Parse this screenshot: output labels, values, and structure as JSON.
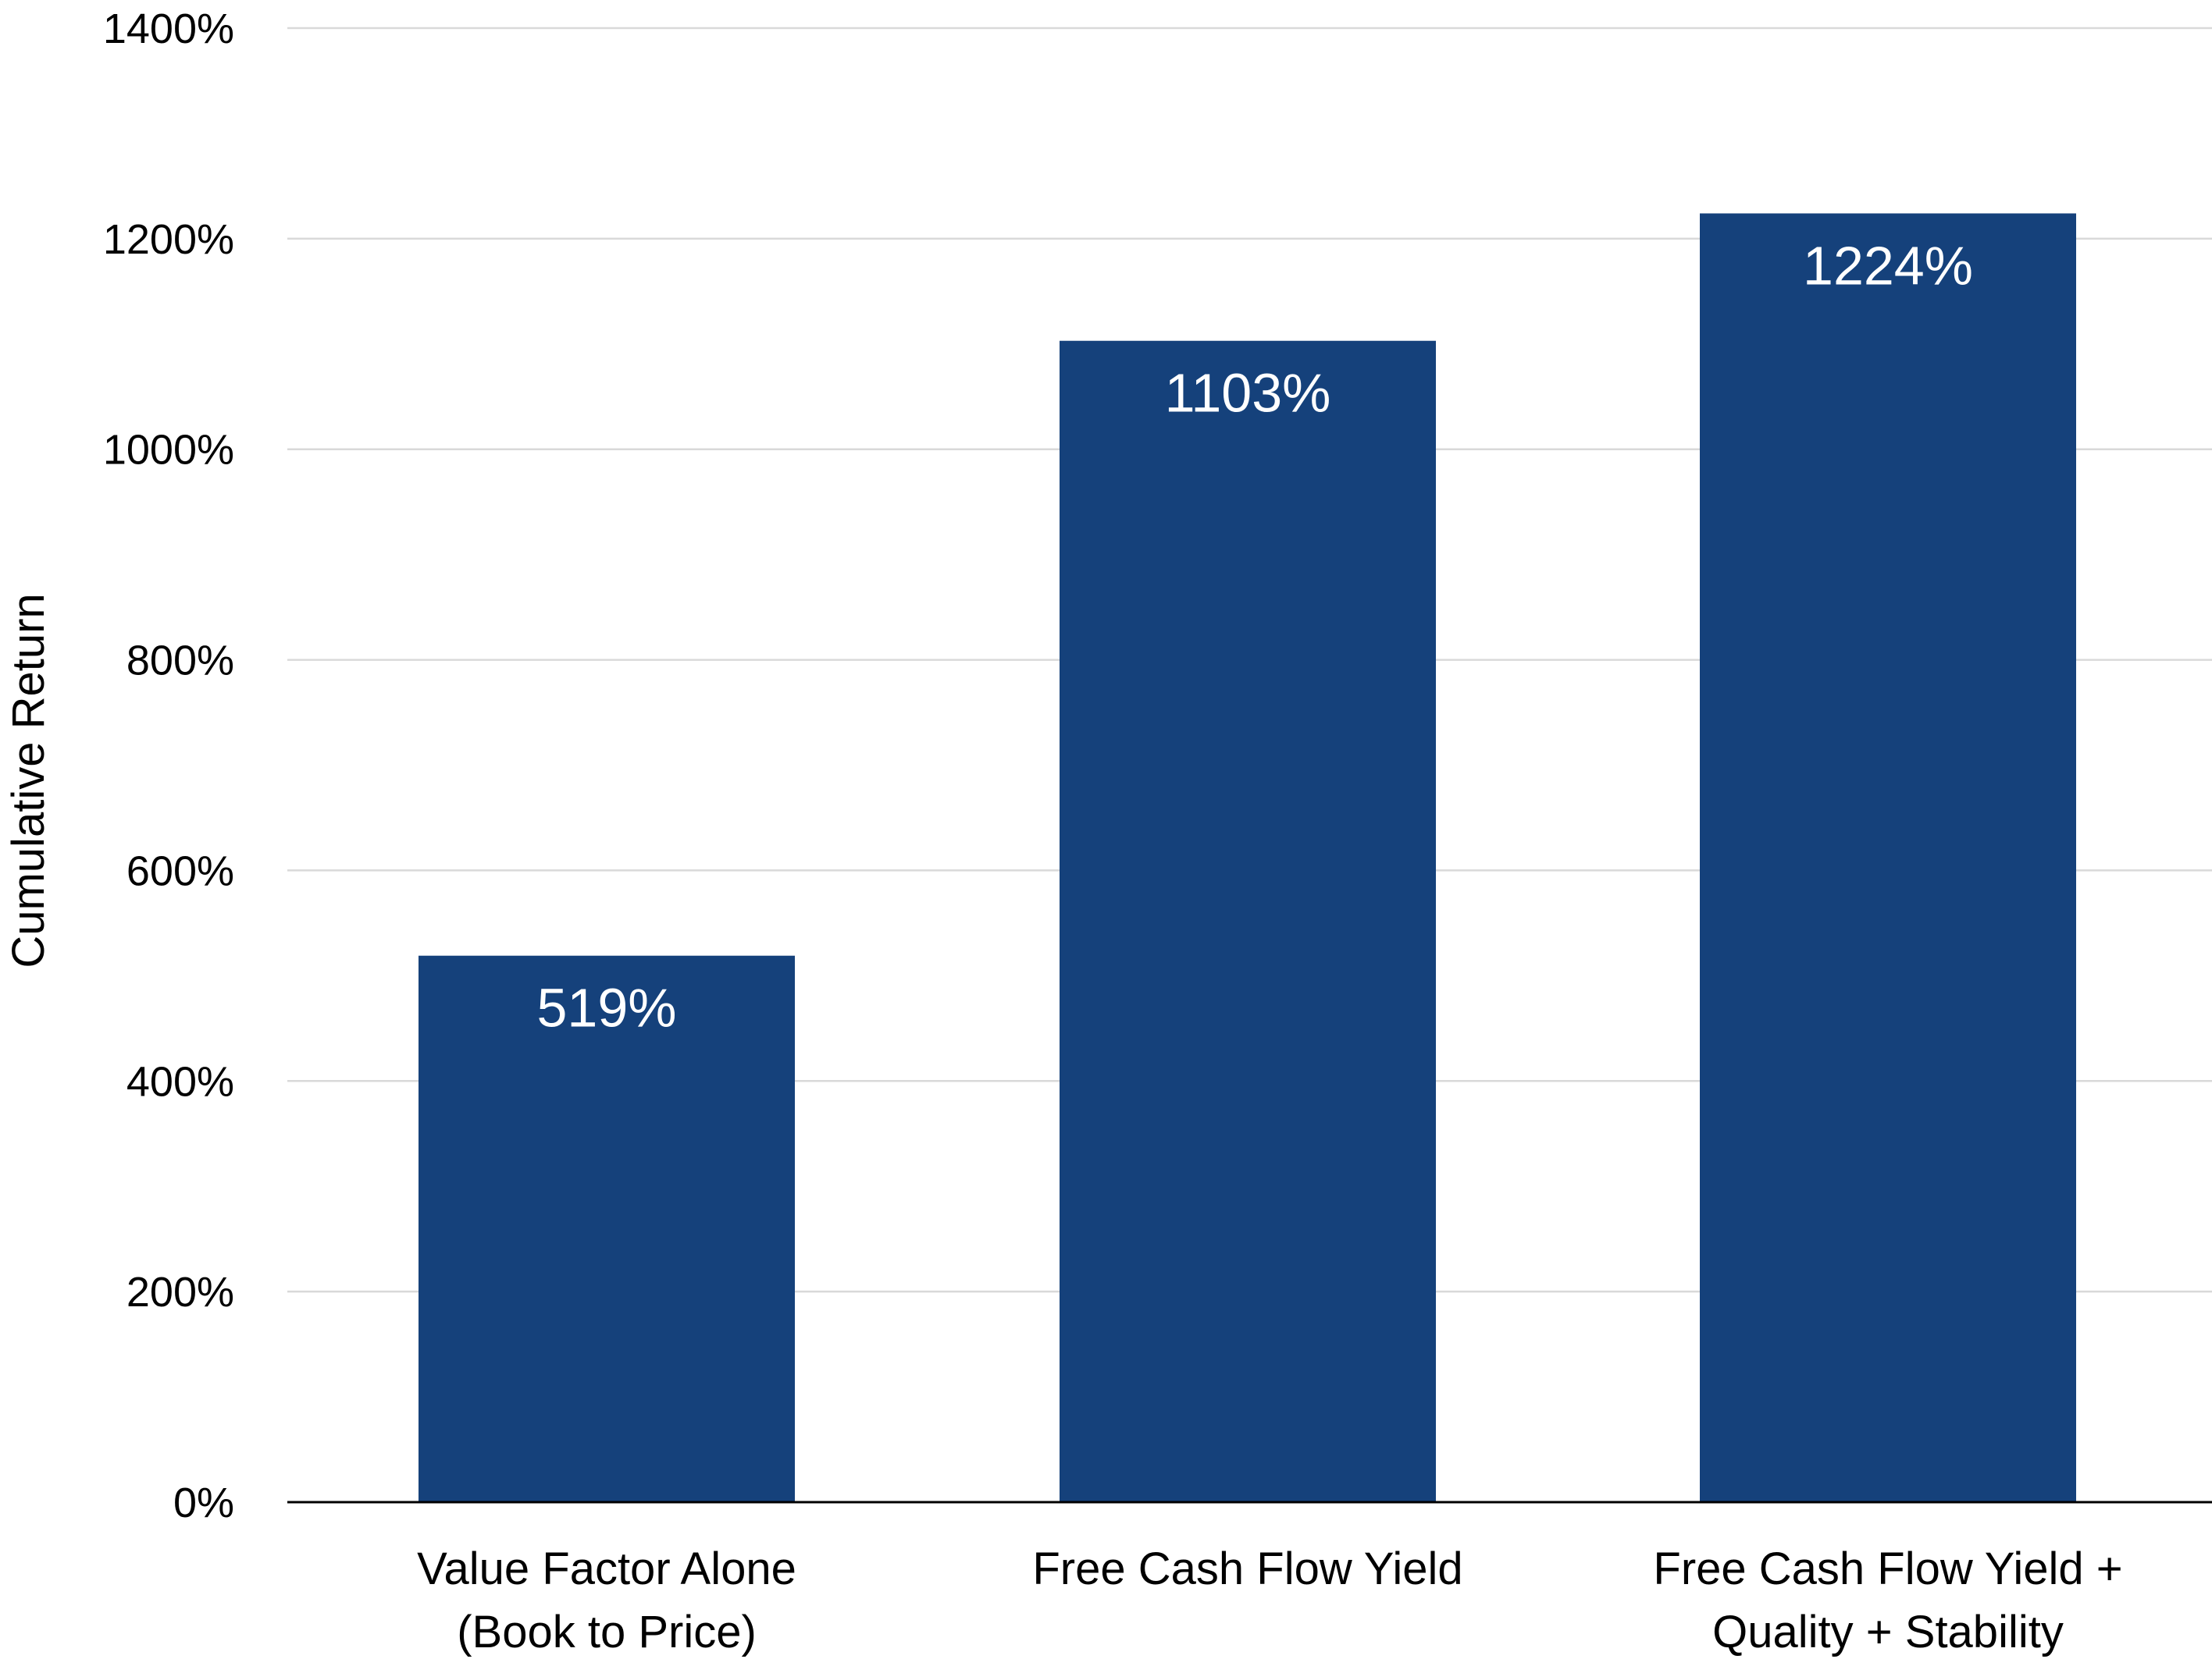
{
  "chart_data": {
    "type": "bar",
    "title": "",
    "xlabel": "",
    "ylabel": "Cumulative Return",
    "ylim": [
      0,
      1400
    ],
    "yticks": [
      0,
      200,
      400,
      600,
      800,
      1000,
      1200,
      1400
    ],
    "ytick_suffix": "%",
    "grid": true,
    "legend": "none",
    "categories": [
      [
        "Value Factor Alone",
        "(Book to Price)"
      ],
      [
        "Free Cash Flow Yield"
      ],
      [
        "Free Cash Flow Yield +",
        "Quality + Stability"
      ]
    ],
    "values": [
      519,
      1103,
      1224
    ],
    "data_labels": [
      "519%",
      "1103%",
      "1224%"
    ],
    "bar_color": "#15417b"
  }
}
